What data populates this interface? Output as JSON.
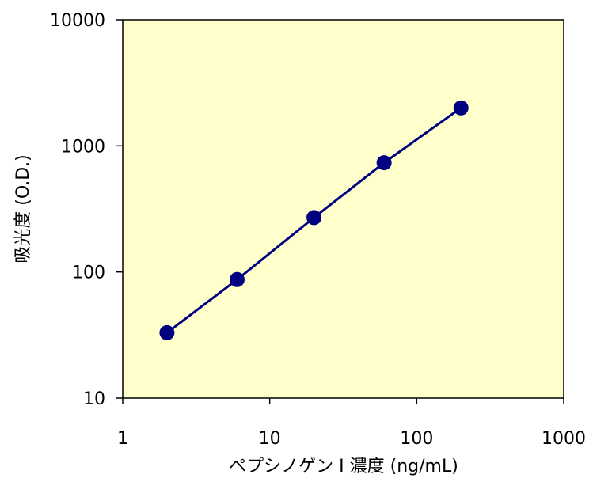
{
  "chart_data": {
    "type": "line",
    "title": "",
    "xlabel": "ペプシノゲン Ⅰ 濃度 (ng/mL)",
    "ylabel": "吸光度 (O.D.)",
    "xscale": "log",
    "yscale": "log",
    "xlim": [
      1,
      1000
    ],
    "ylim": [
      10,
      10000
    ],
    "x_ticks": [
      1,
      10,
      100,
      1000
    ],
    "y_ticks": [
      10,
      100,
      1000,
      10000
    ],
    "x_tick_labels": [
      "1",
      "10",
      "100",
      "1000"
    ],
    "y_tick_labels": [
      "10",
      "100",
      "1000",
      "10000"
    ],
    "grid": false,
    "legend": "none",
    "series": [
      {
        "x": [
          2,
          6,
          20,
          60,
          200
        ],
        "y": [
          33,
          87,
          270,
          735,
          2000
        ]
      }
    ]
  },
  "colors": {
    "plot_background": "#FFFFCC",
    "series_line": "#000080",
    "series_marker": "#000080",
    "axis": "#000000"
  }
}
